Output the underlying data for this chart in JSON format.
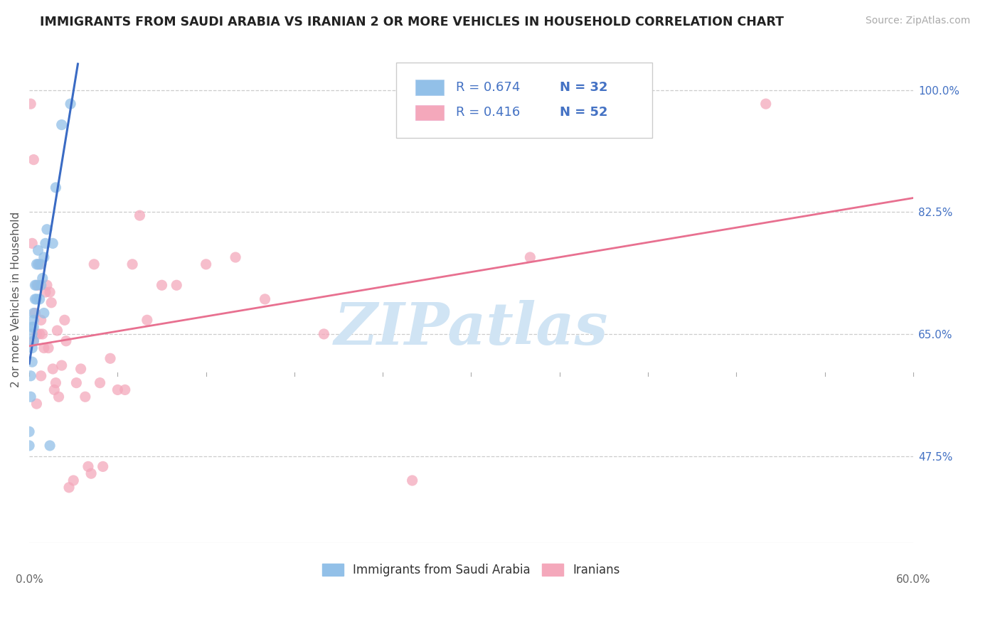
{
  "title": "IMMIGRANTS FROM SAUDI ARABIA VS IRANIAN 2 OR MORE VEHICLES IN HOUSEHOLD CORRELATION CHART",
  "source": "Source: ZipAtlas.com",
  "legend_label1": "Immigrants from Saudi Arabia",
  "legend_label2": "Iranians",
  "R1": "0.674",
  "N1": "32",
  "R2": "0.416",
  "N2": "52",
  "color_blue": "#92c0e8",
  "color_pink": "#f4a8bb",
  "color_line_blue": "#3a6bc4",
  "color_line_pink": "#e87090",
  "color_text_blue": "#4472c4",
  "color_title": "#222222",
  "color_source": "#aaaaaa",
  "color_axis": "#666666",
  "color_watermark": "#d0e4f4",
  "xmin": 0.0,
  "xmax": 0.6,
  "ymin": 0.35,
  "ymax": 1.05,
  "ytick_vals": [
    0.475,
    0.65,
    0.825,
    1.0
  ],
  "ytick_labels": [
    "47.5%",
    "65.0%",
    "82.5%",
    "100.0%"
  ],
  "saudi_x": [
    0.0,
    0.0,
    0.001,
    0.001,
    0.002,
    0.002,
    0.002,
    0.002,
    0.003,
    0.003,
    0.003,
    0.003,
    0.004,
    0.004,
    0.005,
    0.005,
    0.005,
    0.006,
    0.006,
    0.007,
    0.008,
    0.008,
    0.009,
    0.01,
    0.01,
    0.011,
    0.012,
    0.014,
    0.016,
    0.018,
    0.022,
    0.028
  ],
  "saudi_y": [
    0.49,
    0.51,
    0.56,
    0.59,
    0.61,
    0.63,
    0.65,
    0.66,
    0.64,
    0.66,
    0.67,
    0.68,
    0.7,
    0.72,
    0.7,
    0.72,
    0.75,
    0.75,
    0.77,
    0.7,
    0.72,
    0.75,
    0.73,
    0.76,
    0.68,
    0.78,
    0.8,
    0.49,
    0.78,
    0.86,
    0.95,
    0.98
  ],
  "iranian_x": [
    0.001,
    0.002,
    0.003,
    0.003,
    0.004,
    0.005,
    0.005,
    0.006,
    0.007,
    0.007,
    0.008,
    0.008,
    0.009,
    0.01,
    0.011,
    0.012,
    0.013,
    0.014,
    0.015,
    0.016,
    0.017,
    0.018,
    0.019,
    0.02,
    0.022,
    0.024,
    0.025,
    0.027,
    0.03,
    0.032,
    0.035,
    0.038,
    0.04,
    0.042,
    0.044,
    0.048,
    0.05,
    0.055,
    0.06,
    0.065,
    0.07,
    0.075,
    0.08,
    0.09,
    0.1,
    0.12,
    0.14,
    0.16,
    0.2,
    0.26,
    0.34,
    0.5
  ],
  "iranian_y": [
    0.98,
    0.78,
    0.64,
    0.9,
    0.68,
    0.65,
    0.55,
    0.72,
    0.65,
    0.75,
    0.67,
    0.59,
    0.65,
    0.63,
    0.71,
    0.72,
    0.63,
    0.71,
    0.695,
    0.6,
    0.57,
    0.58,
    0.655,
    0.56,
    0.605,
    0.67,
    0.64,
    0.43,
    0.44,
    0.58,
    0.6,
    0.56,
    0.46,
    0.45,
    0.75,
    0.58,
    0.46,
    0.615,
    0.57,
    0.57,
    0.75,
    0.82,
    0.67,
    0.72,
    0.72,
    0.75,
    0.76,
    0.7,
    0.65,
    0.44,
    0.76,
    0.98
  ],
  "saudi_line_x": [
    0.0,
    0.033
  ],
  "iranian_line_x": [
    0.0,
    0.6
  ]
}
